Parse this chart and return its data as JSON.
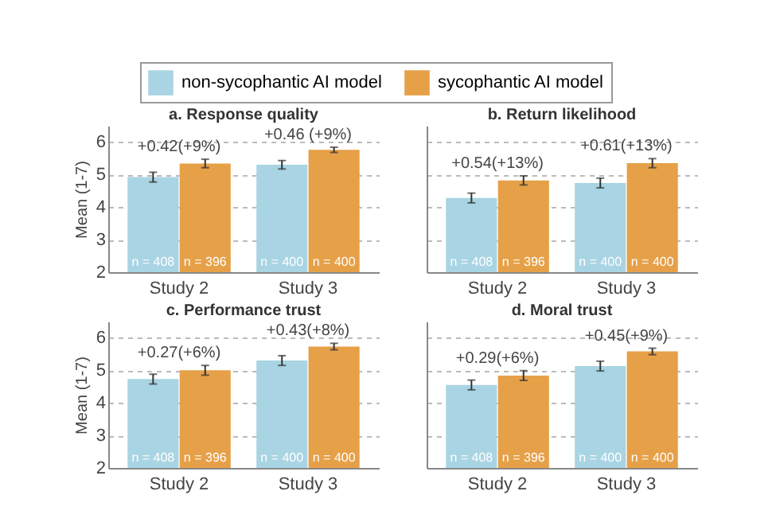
{
  "chart_data": [
    {
      "type": "bar",
      "title": "a. Response quality",
      "ylabel": "Mean (1-7)",
      "categories": [
        "Study 2",
        "Study 3"
      ],
      "ylim": [
        2,
        6.5
      ],
      "yticks": [
        2,
        3,
        4,
        5,
        6
      ],
      "grid": "y",
      "legend": "top",
      "series": [
        {
          "name": "non-sycophantic AI model",
          "color": "#a9d4e3",
          "values": [
            4.92,
            5.3
          ],
          "errors": [
            0.15,
            0.13
          ]
        },
        {
          "name": "sycophantic AI model",
          "color": "#e6a048",
          "values": [
            5.34,
            5.76
          ],
          "errors": [
            0.13,
            0.08
          ]
        }
      ],
      "annotations": [
        "+0.42(+9%)",
        "+0.46 (+9%)",
        "n = 408",
        "n = 400",
        "n = 396",
        "n = 400"
      ]
    },
    {
      "type": "bar",
      "title": "b. Return likelihood",
      "categories": [
        "Study 2",
        "Study 3"
      ],
      "ylim": [
        2,
        6.5
      ],
      "yticks": [
        2,
        3,
        4,
        5,
        6
      ],
      "grid": "y",
      "tick_labels": "x",
      "series": [
        {
          "name": "non-sycophantic AI model",
          "color": "#a9d4e3",
          "values": [
            4.28,
            4.74
          ],
          "errors": [
            0.15,
            0.15
          ]
        },
        {
          "name": "sycophantic AI model",
          "color": "#e6a048",
          "values": [
            4.82,
            5.35
          ],
          "errors": [
            0.14,
            0.14
          ]
        }
      ],
      "annotations": [
        "+0.54(+13%)",
        "+0.61(+13%)",
        "n = 408",
        "n = 400",
        "n = 396",
        "n = 400"
      ]
    },
    {
      "type": "bar",
      "title": "c. Performance trust",
      "ylabel": "Mean (1-7)",
      "categories": [
        "Study 2",
        "Study 3"
      ],
      "ylim": [
        2,
        6.5
      ],
      "yticks": [
        2,
        3,
        4,
        5,
        6
      ],
      "grid": "y",
      "series": [
        {
          "name": "non-sycophantic AI model",
          "color": "#a9d4e3",
          "values": [
            4.73,
            5.3
          ],
          "errors": [
            0.15,
            0.15
          ]
        },
        {
          "name": "sycophantic AI model",
          "color": "#e6a048",
          "values": [
            5.0,
            5.73
          ],
          "errors": [
            0.15,
            0.1
          ]
        }
      ],
      "annotations": [
        "+0.27(+6%)",
        "+0.43(+8%)",
        "n = 408",
        "n = 400",
        "n = 396",
        "n = 400"
      ]
    },
    {
      "type": "bar",
      "title": "d. Moral trust",
      "categories": [
        "Study 2",
        "Study 3"
      ],
      "ylim": [
        2,
        6.5
      ],
      "yticks": [
        2,
        3,
        4,
        5,
        6
      ],
      "grid": "y",
      "tick_labels": "x",
      "series": [
        {
          "name": "non-sycophantic AI model",
          "color": "#a9d4e3",
          "values": [
            4.55,
            5.13
          ],
          "errors": [
            0.15,
            0.15
          ]
        },
        {
          "name": "sycophantic AI model",
          "color": "#e6a048",
          "values": [
            4.84,
            5.58
          ],
          "errors": [
            0.15,
            0.1
          ]
        }
      ],
      "annotations": [
        "+0.29(+6%)",
        "+0.45(+9%)",
        "n = 408",
        "n = 400",
        "n = 396",
        "n = 400"
      ]
    }
  ]
}
